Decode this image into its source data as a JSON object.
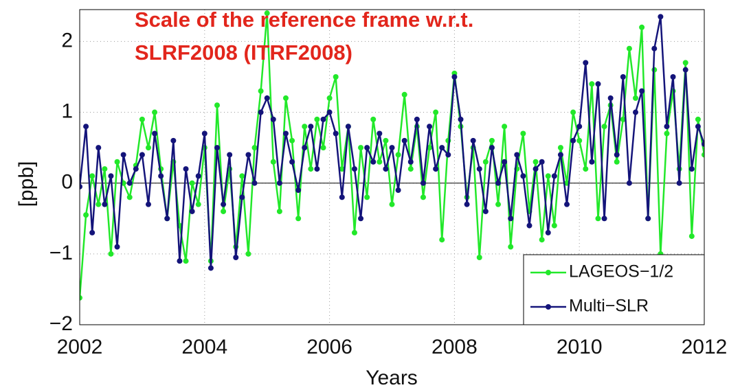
{
  "chart_data": {
    "type": "line",
    "title": [
      "Scale of the reference frame w.r.t.",
      "SLRF2008 (ITRF2008)"
    ],
    "title_color": "#e2261c",
    "xlabel": "Years",
    "ylabel": "[ppb]",
    "x": [
      2002,
      2002.1,
      2002.2,
      2002.3,
      2002.4,
      2002.5,
      2002.6,
      2002.7,
      2002.8,
      2002.9,
      2003,
      2003.1,
      2003.2,
      2003.3,
      2003.4,
      2003.5,
      2003.6,
      2003.7,
      2003.8,
      2003.9,
      2004,
      2004.1,
      2004.2,
      2004.3,
      2004.4,
      2004.5,
      2004.6,
      2004.7,
      2004.8,
      2004.9,
      2005,
      2005.1,
      2005.2,
      2005.3,
      2005.4,
      2005.5,
      2005.6,
      2005.7,
      2005.8,
      2005.9,
      2006,
      2006.1,
      2006.2,
      2006.3,
      2006.4,
      2006.5,
      2006.6,
      2006.7,
      2006.8,
      2006.9,
      2007,
      2007.1,
      2007.2,
      2007.3,
      2007.4,
      2007.5,
      2007.6,
      2007.7,
      2007.8,
      2007.9,
      2008,
      2008.1,
      2008.2,
      2008.3,
      2008.4,
      2008.5,
      2008.6,
      2008.7,
      2008.8,
      2008.9,
      2009,
      2009.1,
      2009.2,
      2009.3,
      2009.4,
      2009.5,
      2009.6,
      2009.7,
      2009.8,
      2009.9,
      2010,
      2010.1,
      2010.2,
      2010.3,
      2010.4,
      2010.5,
      2010.6,
      2010.7,
      2010.8,
      2010.9,
      2011,
      2011.1,
      2011.2,
      2011.3,
      2011.4,
      2011.5,
      2011.6,
      2011.7,
      2011.8,
      2011.9,
      2012
    ],
    "series": [
      {
        "name": "LAGEOS−1/2",
        "color": "#22e82a",
        "values": [
          -1.62,
          -0.45,
          0.1,
          -0.3,
          0.2,
          -1.0,
          0.3,
          0.0,
          -0.2,
          0.25,
          0.9,
          0.5,
          1.0,
          0.2,
          -0.5,
          0.3,
          -0.6,
          -1.1,
          0.0,
          -0.3,
          0.5,
          -1.1,
          1.1,
          -0.4,
          0.2,
          -0.9,
          0.1,
          -1.0,
          0.5,
          1.3,
          2.4,
          0.3,
          -0.4,
          1.2,
          0.6,
          -0.5,
          0.8,
          0.2,
          0.9,
          0.5,
          1.2,
          1.5,
          0.2,
          0.8,
          -0.7,
          0.5,
          -0.2,
          0.9,
          0.3,
          0.6,
          -0.3,
          0.4,
          1.25,
          0.2,
          0.8,
          -0.2,
          0.5,
          1.0,
          -0.8,
          0.6,
          1.55,
          0.8,
          -0.2,
          0.5,
          -1.05,
          0.3,
          0.6,
          -0.3,
          0.8,
          -0.9,
          0.2,
          0.7,
          -0.4,
          0.3,
          -0.8,
          0.1,
          -0.6,
          0.5,
          0.0,
          1.0,
          0.6,
          0.2,
          1.4,
          -0.5,
          0.8,
          1.1,
          0.3,
          0.9,
          1.9,
          1.2,
          2.2,
          -0.5,
          1.6,
          -1.0,
          0.7,
          1.3,
          0.2,
          1.7,
          -0.75,
          0.9,
          0.4
        ]
      },
      {
        "name": "Multi−SLR",
        "color": "#14147a",
        "values": [
          -0.05,
          0.8,
          -0.7,
          0.5,
          -0.3,
          0.1,
          -0.9,
          0.4,
          0.0,
          0.2,
          0.4,
          -0.3,
          0.7,
          0.1,
          -0.5,
          0.6,
          -1.1,
          0.2,
          -0.4,
          0.1,
          0.7,
          -1.2,
          0.5,
          -0.3,
          0.4,
          -1.05,
          -0.2,
          0.4,
          0.0,
          1.0,
          1.2,
          0.9,
          0.0,
          0.7,
          0.3,
          -0.1,
          0.5,
          0.8,
          0.2,
          0.9,
          1.0,
          0.7,
          -0.2,
          0.8,
          0.2,
          -0.5,
          0.5,
          0.3,
          0.7,
          0.2,
          0.5,
          -0.1,
          0.6,
          0.3,
          0.9,
          0.0,
          0.8,
          0.2,
          0.5,
          0.4,
          1.5,
          0.9,
          -0.3,
          0.6,
          0.2,
          -0.4,
          0.5,
          0.0,
          0.3,
          -0.5,
          0.4,
          0.1,
          -0.6,
          0.2,
          0.3,
          -0.7,
          0.1,
          0.4,
          -0.3,
          0.6,
          0.8,
          1.7,
          0.3,
          1.4,
          -0.5,
          1.2,
          0.4,
          1.5,
          0.0,
          1.0,
          1.3,
          -0.5,
          1.9,
          2.35,
          0.8,
          1.5,
          0.0,
          1.6,
          0.2,
          0.8,
          0.55
        ]
      }
    ],
    "xlim": [
      2002,
      2012
    ],
    "ylim": [
      -2,
      2.45
    ],
    "xticks": [
      2002,
      2004,
      2006,
      2008,
      2010,
      2012
    ],
    "yticks": [
      {
        "value": -2,
        "label": "−2"
      },
      {
        "value": -1,
        "label": "−1"
      },
      0,
      1,
      2
    ],
    "grid": true,
    "legend": "lower right"
  }
}
